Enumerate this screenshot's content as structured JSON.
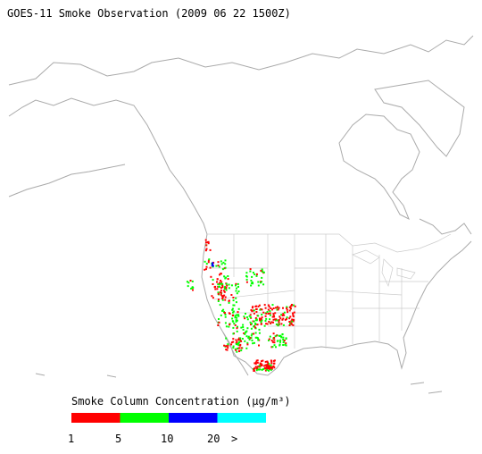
{
  "title": "GOES-11 Smoke Observation (2009 06 22  1500Z)",
  "legend": {
    "title": "Smoke Column Concentration (μg/m³)",
    "colors": [
      "#ff0000",
      "#00ff00",
      "#0000ff",
      "#00ffff"
    ],
    "labels": [
      "1",
      "5",
      "10",
      "20",
      ">"
    ]
  }
}
